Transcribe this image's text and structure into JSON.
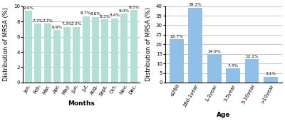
{
  "chart_data": [
    {
      "type": "bar",
      "categories": [
        "Jan.",
        "Feb.",
        "Mar.",
        "Apr.",
        "May.",
        "Jun.",
        "Jul.",
        "Aug.",
        "Sept.",
        "Oct.",
        "Nov.",
        "Dec."
      ],
      "values": [
        9.4,
        7.7,
        7.7,
        6.9,
        7.3,
        7.3,
        8.7,
        8.6,
        8.3,
        8.4,
        9.0,
        9.5
      ],
      "value_labels": [
        "9.4%",
        "7.7%",
        "7.7%",
        "6.9%",
        "7.3%",
        "7.3%",
        "8.7%",
        "8.6%",
        "8.3%",
        "8.4%",
        "9.0%",
        "9.5%"
      ],
      "data_labels": true,
      "color": "#b2e0d4",
      "xlabel": "Months",
      "ylabel": "Distribution of MRSA (%)",
      "ylim": [
        0,
        10
      ],
      "yticks": [
        0,
        2,
        4,
        6,
        8,
        10
      ],
      "grid": true
    },
    {
      "type": "bar",
      "categories": [
        "≤28d",
        "28d-1year",
        "1-3year",
        "3-5year",
        "5-10year",
        ">10year"
      ],
      "values": [
        22.7,
        39.3,
        14.9,
        7.4,
        12.1,
        3.1
      ],
      "value_labels": [
        "22.7%",
        "39.3%",
        "14.9%",
        "7.4%",
        "12.1%",
        "3.1%"
      ],
      "data_labels": true,
      "color": "#90bfe8",
      "xlabel": "Age",
      "ylabel": "Distribution of MRSA (%)",
      "ylim": [
        0,
        40
      ],
      "yticks": [
        0,
        5,
        10,
        15,
        20,
        25,
        30,
        35,
        40
      ],
      "grid": true
    }
  ]
}
